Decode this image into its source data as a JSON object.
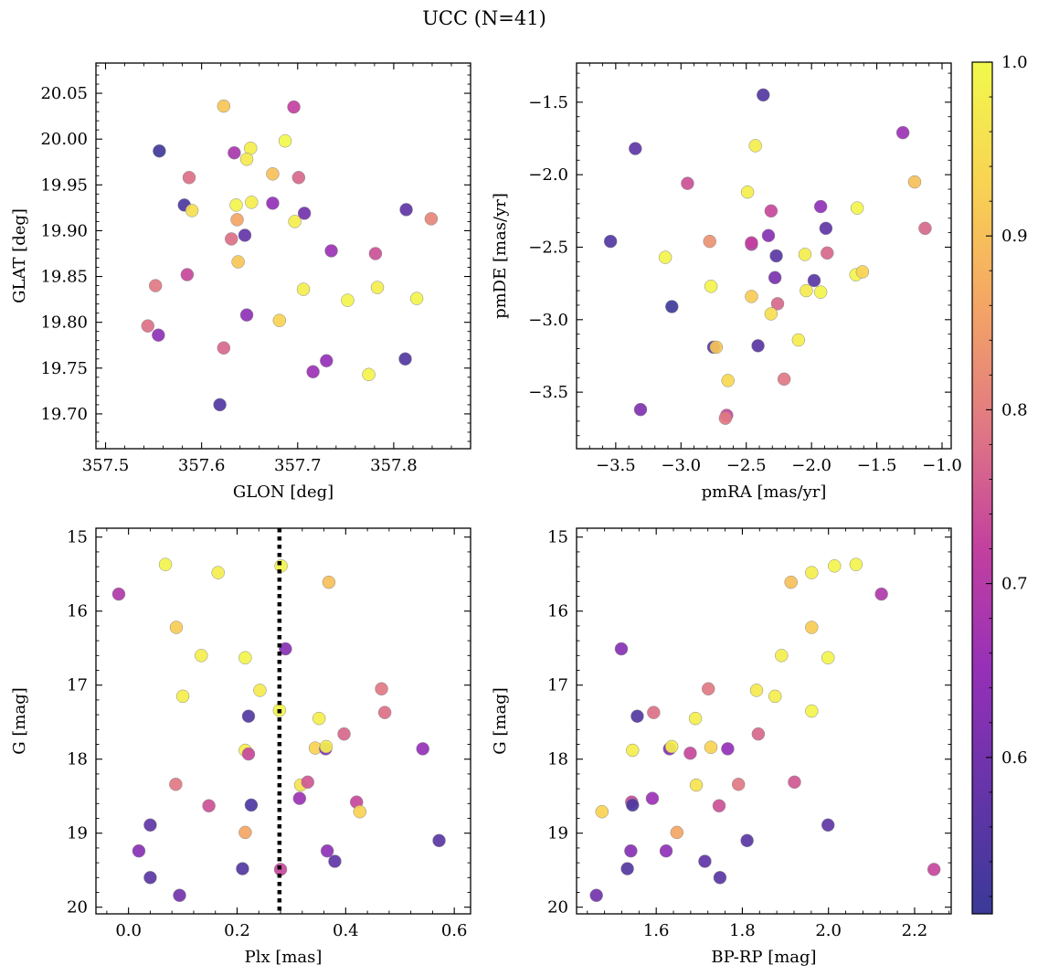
{
  "figure": {
    "title": "UCC (N=41)"
  },
  "colormap": {
    "name": "plasma",
    "stops": [
      "#3a3a98",
      "#6534a8",
      "#9530b8",
      "#c2409f",
      "#e07883",
      "#f4a565",
      "#f8d352",
      "#f2f94c"
    ],
    "range": [
      0.51,
      1.0
    ],
    "ticks": [
      0.6,
      0.7,
      0.8,
      0.9,
      1.0
    ],
    "tick_labels": [
      "0.6",
      "0.7",
      "0.8",
      "0.9",
      "1.0"
    ]
  },
  "chart_data": [
    {
      "type": "scatter",
      "xlabel": "GLON [deg]",
      "ylabel": "GLAT [deg]",
      "xlim": [
        357.49,
        357.88
      ],
      "ylim": [
        19.662,
        20.083
      ],
      "xticks": [
        357.5,
        357.6,
        357.7,
        357.8
      ],
      "xtick_labels": [
        "357.5",
        "357.6",
        "357.7",
        "357.8"
      ],
      "yticks": [
        19.7,
        19.75,
        19.8,
        19.85,
        19.9,
        19.95,
        20.0,
        20.05
      ],
      "ytick_labels": [
        "19.70",
        "19.75",
        "19.80",
        "19.85",
        "19.90",
        "19.95",
        "20.00",
        "20.05"
      ],
      "y_inverted": false,
      "points": [
        {
          "x": 357.623,
          "y": 20.036,
          "c": 0.91
        },
        {
          "x": 357.696,
          "y": 20.035,
          "c": 0.72
        },
        {
          "x": 357.556,
          "y": 19.987,
          "c": 0.52
        },
        {
          "x": 357.634,
          "y": 19.985,
          "c": 0.68
        },
        {
          "x": 357.651,
          "y": 19.99,
          "c": 0.98
        },
        {
          "x": 357.647,
          "y": 19.978,
          "c": 0.97
        },
        {
          "x": 357.687,
          "y": 19.998,
          "c": 1.0
        },
        {
          "x": 357.587,
          "y": 19.958,
          "c": 0.78
        },
        {
          "x": 357.674,
          "y": 19.962,
          "c": 0.9
        },
        {
          "x": 357.701,
          "y": 19.958,
          "c": 0.77
        },
        {
          "x": 357.582,
          "y": 19.928,
          "c": 0.54
        },
        {
          "x": 357.59,
          "y": 19.922,
          "c": 0.95
        },
        {
          "x": 357.636,
          "y": 19.928,
          "c": 0.99
        },
        {
          "x": 357.652,
          "y": 19.931,
          "c": 0.98
        },
        {
          "x": 357.674,
          "y": 19.93,
          "c": 0.65
        },
        {
          "x": 357.707,
          "y": 19.919,
          "c": 0.6
        },
        {
          "x": 357.637,
          "y": 19.912,
          "c": 0.86
        },
        {
          "x": 357.697,
          "y": 19.91,
          "c": 0.98
        },
        {
          "x": 357.631,
          "y": 19.891,
          "c": 0.78
        },
        {
          "x": 357.645,
          "y": 19.895,
          "c": 0.58
        },
        {
          "x": 357.813,
          "y": 19.923,
          "c": 0.57
        },
        {
          "x": 357.839,
          "y": 19.913,
          "c": 0.81
        },
        {
          "x": 357.638,
          "y": 19.866,
          "c": 0.91
        },
        {
          "x": 357.735,
          "y": 19.878,
          "c": 0.66
        },
        {
          "x": 357.781,
          "y": 19.875,
          "c": 0.74
        },
        {
          "x": 357.585,
          "y": 19.852,
          "c": 0.73
        },
        {
          "x": 357.552,
          "y": 19.84,
          "c": 0.79
        },
        {
          "x": 357.706,
          "y": 19.836,
          "c": 0.98
        },
        {
          "x": 357.752,
          "y": 19.824,
          "c": 0.99
        },
        {
          "x": 357.783,
          "y": 19.838,
          "c": 0.98
        },
        {
          "x": 357.824,
          "y": 19.826,
          "c": 0.99
        },
        {
          "x": 357.647,
          "y": 19.808,
          "c": 0.64
        },
        {
          "x": 357.681,
          "y": 19.802,
          "c": 0.93
        },
        {
          "x": 357.544,
          "y": 19.796,
          "c": 0.78
        },
        {
          "x": 357.555,
          "y": 19.786,
          "c": 0.64
        },
        {
          "x": 357.623,
          "y": 19.772,
          "c": 0.77
        },
        {
          "x": 357.812,
          "y": 19.76,
          "c": 0.55
        },
        {
          "x": 357.73,
          "y": 19.758,
          "c": 0.65
        },
        {
          "x": 357.716,
          "y": 19.746,
          "c": 0.66
        },
        {
          "x": 357.774,
          "y": 19.743,
          "c": 0.99
        },
        {
          "x": 357.619,
          "y": 19.71,
          "c": 0.55
        }
      ]
    },
    {
      "type": "scatter",
      "xlabel": "pmRA [mas/yr]",
      "ylabel": "pmDE [mas/yr]",
      "xlim": [
        -3.8,
        -0.93
      ],
      "ylim": [
        -3.89,
        -1.23
      ],
      "xticks": [
        -3.5,
        -3.0,
        -2.5,
        -2.0,
        -1.5,
        -1.0
      ],
      "xtick_labels": [
        "−3.5",
        "−3.0",
        "−2.5",
        "−2.0",
        "−1.5",
        "−1.0"
      ],
      "yticks": [
        -3.5,
        -3.0,
        -2.5,
        -2.0,
        -1.5
      ],
      "ytick_labels": [
        "−3.5",
        "−3.0",
        "−2.5",
        "−2.0",
        "−1.5"
      ],
      "y_inverted": false,
      "points": [
        {
          "x": -2.37,
          "y": -1.45,
          "c": 0.55
        },
        {
          "x": -1.3,
          "y": -1.71,
          "c": 0.66
        },
        {
          "x": -3.35,
          "y": -1.82,
          "c": 0.57
        },
        {
          "x": -2.43,
          "y": -1.8,
          "c": 0.98
        },
        {
          "x": -2.95,
          "y": -2.06,
          "c": 0.74
        },
        {
          "x": -1.21,
          "y": -2.05,
          "c": 0.9
        },
        {
          "x": -2.49,
          "y": -2.12,
          "c": 0.98
        },
        {
          "x": -2.31,
          "y": -2.25,
          "c": 0.73
        },
        {
          "x": -1.93,
          "y": -2.22,
          "c": 0.64
        },
        {
          "x": -1.65,
          "y": -2.23,
          "c": 0.99
        },
        {
          "x": -1.89,
          "y": -2.37,
          "c": 0.57
        },
        {
          "x": -1.13,
          "y": -2.37,
          "c": 0.77
        },
        {
          "x": -3.54,
          "y": -2.46,
          "c": 0.55
        },
        {
          "x": -2.78,
          "y": -2.46,
          "c": 0.83
        },
        {
          "x": -2.46,
          "y": -2.48,
          "c": 0.68
        },
        {
          "x": -2.46,
          "y": -2.47,
          "c": 0.72
        },
        {
          "x": -2.33,
          "y": -2.42,
          "c": 0.63
        },
        {
          "x": -1.88,
          "y": -2.54,
          "c": 0.77
        },
        {
          "x": -3.12,
          "y": -2.57,
          "c": 0.99
        },
        {
          "x": -2.27,
          "y": -2.56,
          "c": 0.56
        },
        {
          "x": -2.05,
          "y": -2.55,
          "c": 0.98
        },
        {
          "x": -1.66,
          "y": -2.69,
          "c": 0.99
        },
        {
          "x": -1.61,
          "y": -2.67,
          "c": 0.93
        },
        {
          "x": -2.28,
          "y": -2.71,
          "c": 0.61
        },
        {
          "x": -1.98,
          "y": -2.73,
          "c": 0.56
        },
        {
          "x": -2.77,
          "y": -2.77,
          "c": 0.99
        },
        {
          "x": -2.04,
          "y": -2.8,
          "c": 0.97
        },
        {
          "x": -1.93,
          "y": -2.81,
          "c": 0.99
        },
        {
          "x": -2.46,
          "y": -2.84,
          "c": 0.92
        },
        {
          "x": -2.26,
          "y": -2.89,
          "c": 0.77
        },
        {
          "x": -3.07,
          "y": -2.91,
          "c": 0.52
        },
        {
          "x": -2.31,
          "y": -2.96,
          "c": 0.95
        },
        {
          "x": -2.1,
          "y": -3.14,
          "c": 0.98
        },
        {
          "x": -2.75,
          "y": -3.19,
          "c": 0.55
        },
        {
          "x": -2.73,
          "y": -3.19,
          "c": 0.91
        },
        {
          "x": -2.41,
          "y": -3.18,
          "c": 0.56
        },
        {
          "x": -2.64,
          "y": -3.42,
          "c": 0.94
        },
        {
          "x": -2.21,
          "y": -3.41,
          "c": 0.79
        },
        {
          "x": -3.31,
          "y": -3.62,
          "c": 0.62
        },
        {
          "x": -2.65,
          "y": -3.66,
          "c": 0.73
        },
        {
          "x": -2.66,
          "y": -3.68,
          "c": 0.79
        }
      ]
    },
    {
      "type": "scatter",
      "xlabel": "Plx [mas]",
      "ylabel": "G [mag]",
      "xlim": [
        -0.06,
        0.63
      ],
      "ylim": [
        20.09,
        14.88
      ],
      "xticks": [
        0.0,
        0.2,
        0.4,
        0.6
      ],
      "xtick_labels": [
        "0.0",
        "0.2",
        "0.4",
        "0.6"
      ],
      "yticks": [
        15,
        16,
        17,
        18,
        19,
        20
      ],
      "ytick_labels": [
        "15",
        "16",
        "17",
        "18",
        "19",
        "20"
      ],
      "y_inverted": true,
      "vline": {
        "x": 0.278
      },
      "points": [
        {
          "x": 0.068,
          "y": 15.37,
          "c": 0.99
        },
        {
          "x": 0.165,
          "y": 15.48,
          "c": 0.98
        },
        {
          "x": 0.281,
          "y": 15.39,
          "c": 0.99
        },
        {
          "x": 0.369,
          "y": 15.61,
          "c": 0.9
        },
        {
          "x": -0.018,
          "y": 15.77,
          "c": 0.69
        },
        {
          "x": 0.088,
          "y": 16.22,
          "c": 0.92
        },
        {
          "x": 0.289,
          "y": 16.51,
          "c": 0.63
        },
        {
          "x": 0.134,
          "y": 16.6,
          "c": 0.98
        },
        {
          "x": 0.215,
          "y": 16.63,
          "c": 0.99
        },
        {
          "x": 0.1,
          "y": 17.15,
          "c": 0.98
        },
        {
          "x": 0.242,
          "y": 17.07,
          "c": 0.97
        },
        {
          "x": 0.466,
          "y": 17.05,
          "c": 0.79
        },
        {
          "x": 0.472,
          "y": 17.37,
          "c": 0.78
        },
        {
          "x": 0.221,
          "y": 17.42,
          "c": 0.55
        },
        {
          "x": 0.278,
          "y": 17.34,
          "c": 0.99
        },
        {
          "x": 0.351,
          "y": 17.45,
          "c": 0.98
        },
        {
          "x": 0.397,
          "y": 17.66,
          "c": 0.77
        },
        {
          "x": 0.215,
          "y": 17.88,
          "c": 0.98
        },
        {
          "x": 0.221,
          "y": 17.93,
          "c": 0.73
        },
        {
          "x": 0.344,
          "y": 17.85,
          "c": 0.93
        },
        {
          "x": 0.363,
          "y": 17.86,
          "c": 0.63
        },
        {
          "x": 0.364,
          "y": 17.83,
          "c": 0.98
        },
        {
          "x": 0.542,
          "y": 17.86,
          "c": 0.65
        },
        {
          "x": 0.087,
          "y": 18.34,
          "c": 0.79
        },
        {
          "x": 0.317,
          "y": 18.35,
          "c": 0.96
        },
        {
          "x": 0.33,
          "y": 18.31,
          "c": 0.75
        },
        {
          "x": 0.148,
          "y": 18.63,
          "c": 0.74
        },
        {
          "x": 0.226,
          "y": 18.62,
          "c": 0.54
        },
        {
          "x": 0.315,
          "y": 18.53,
          "c": 0.66
        },
        {
          "x": 0.42,
          "y": 18.58,
          "c": 0.73
        },
        {
          "x": 0.426,
          "y": 18.71,
          "c": 0.93
        },
        {
          "x": 0.04,
          "y": 18.89,
          "c": 0.57
        },
        {
          "x": 0.215,
          "y": 18.99,
          "c": 0.86
        },
        {
          "x": 0.572,
          "y": 19.1,
          "c": 0.56
        },
        {
          "x": 0.019,
          "y": 19.24,
          "c": 0.63
        },
        {
          "x": 0.366,
          "y": 19.24,
          "c": 0.64
        },
        {
          "x": 0.38,
          "y": 19.38,
          "c": 0.57
        },
        {
          "x": 0.21,
          "y": 19.48,
          "c": 0.55
        },
        {
          "x": 0.28,
          "y": 19.49,
          "c": 0.73
        },
        {
          "x": 0.04,
          "y": 19.6,
          "c": 0.56
        },
        {
          "x": 0.094,
          "y": 19.84,
          "c": 0.6
        }
      ]
    },
    {
      "type": "scatter",
      "xlabel": "BP-RP [mag]",
      "ylabel": "G [mag]",
      "xlim": [
        1.415,
        2.285
      ],
      "ylim": [
        20.09,
        14.88
      ],
      "xticks": [
        1.6,
        1.8,
        2.0,
        2.2
      ],
      "xtick_labels": [
        "1.6",
        "1.8",
        "2.0",
        "2.2"
      ],
      "yticks": [
        15,
        16,
        17,
        18,
        19,
        20
      ],
      "ytick_labels": [
        "15",
        "16",
        "17",
        "18",
        "19",
        "20"
      ],
      "y_inverted": true,
      "points": [
        {
          "x": 1.961,
          "y": 15.48,
          "c": 0.98
        },
        {
          "x": 2.014,
          "y": 15.39,
          "c": 0.99
        },
        {
          "x": 2.064,
          "y": 15.37,
          "c": 0.99
        },
        {
          "x": 1.913,
          "y": 15.61,
          "c": 0.9
        },
        {
          "x": 2.123,
          "y": 15.77,
          "c": 0.69
        },
        {
          "x": 1.961,
          "y": 16.22,
          "c": 0.92
        },
        {
          "x": 1.519,
          "y": 16.51,
          "c": 0.63
        },
        {
          "x": 1.891,
          "y": 16.6,
          "c": 0.98
        },
        {
          "x": 1.999,
          "y": 16.63,
          "c": 0.99
        },
        {
          "x": 1.833,
          "y": 17.07,
          "c": 0.97
        },
        {
          "x": 1.876,
          "y": 17.15,
          "c": 0.98
        },
        {
          "x": 1.721,
          "y": 17.05,
          "c": 0.79
        },
        {
          "x": 1.594,
          "y": 17.37,
          "c": 0.78
        },
        {
          "x": 1.556,
          "y": 17.42,
          "c": 0.55
        },
        {
          "x": 1.691,
          "y": 17.45,
          "c": 0.98
        },
        {
          "x": 1.961,
          "y": 17.35,
          "c": 0.99
        },
        {
          "x": 1.837,
          "y": 17.66,
          "c": 0.77
        },
        {
          "x": 1.545,
          "y": 17.88,
          "c": 0.98
        },
        {
          "x": 1.631,
          "y": 17.86,
          "c": 0.63
        },
        {
          "x": 1.636,
          "y": 17.83,
          "c": 0.98
        },
        {
          "x": 1.679,
          "y": 17.92,
          "c": 0.73
        },
        {
          "x": 1.727,
          "y": 17.84,
          "c": 0.93
        },
        {
          "x": 1.766,
          "y": 17.86,
          "c": 0.65
        },
        {
          "x": 1.693,
          "y": 18.35,
          "c": 0.96
        },
        {
          "x": 1.791,
          "y": 18.34,
          "c": 0.79
        },
        {
          "x": 1.921,
          "y": 18.31,
          "c": 0.75
        },
        {
          "x": 1.591,
          "y": 18.53,
          "c": 0.66
        },
        {
          "x": 1.543,
          "y": 18.58,
          "c": 0.73
        },
        {
          "x": 1.545,
          "y": 18.62,
          "c": 0.54
        },
        {
          "x": 1.746,
          "y": 18.63,
          "c": 0.74
        },
        {
          "x": 1.474,
          "y": 18.71,
          "c": 0.93
        },
        {
          "x": 1.999,
          "y": 18.89,
          "c": 0.57
        },
        {
          "x": 1.648,
          "y": 18.99,
          "c": 0.86
        },
        {
          "x": 1.811,
          "y": 19.1,
          "c": 0.56
        },
        {
          "x": 1.541,
          "y": 19.24,
          "c": 0.63
        },
        {
          "x": 1.623,
          "y": 19.24,
          "c": 0.64
        },
        {
          "x": 1.713,
          "y": 19.38,
          "c": 0.57
        },
        {
          "x": 1.533,
          "y": 19.48,
          "c": 0.55
        },
        {
          "x": 2.245,
          "y": 19.49,
          "c": 0.73
        },
        {
          "x": 1.748,
          "y": 19.6,
          "c": 0.56
        },
        {
          "x": 1.461,
          "y": 19.84,
          "c": 0.6
        }
      ]
    }
  ]
}
